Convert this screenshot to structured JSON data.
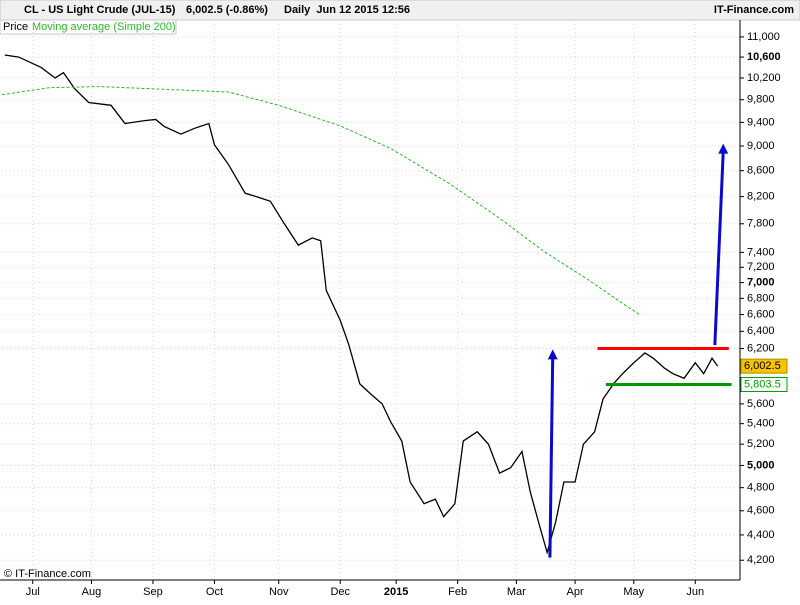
{
  "header": {
    "symbol": "CL - US Light Crude (JUL-15)",
    "quote": "6,002.5 (-0.86%)",
    "period": "Daily  Jun 12 2015 12:56",
    "brand": "IT-Finance.com"
  },
  "footer": "© IT-Finance.com",
  "chart_data": {
    "type": "line",
    "log_scale": true,
    "grid": true,
    "xlim": [
      0,
      264
    ],
    "ylim": [
      4050,
      11080
    ],
    "xticks": [
      {
        "value": 11,
        "label": "Jul"
      },
      {
        "value": 32,
        "label": "Aug"
      },
      {
        "value": 54,
        "label": "Sep"
      },
      {
        "value": 76,
        "label": "Oct"
      },
      {
        "value": 99,
        "label": "Nov"
      },
      {
        "value": 121,
        "label": "Dec"
      },
      {
        "value": 141,
        "label": "2015"
      },
      {
        "value": 163,
        "label": "Feb"
      },
      {
        "value": 184,
        "label": "Mar"
      },
      {
        "value": 205,
        "label": "Apr"
      },
      {
        "value": 226,
        "label": "May"
      },
      {
        "value": 248,
        "label": "Jun"
      }
    ],
    "yticks": [
      {
        "value": 4200,
        "label": "4,200"
      },
      {
        "value": 4400,
        "label": "4,400"
      },
      {
        "value": 4600,
        "label": "4,600"
      },
      {
        "value": 4800,
        "label": "4,800"
      },
      {
        "value": 5000,
        "label": "5,000"
      },
      {
        "value": 5200,
        "label": "5,200"
      },
      {
        "value": 5400,
        "label": "5,400"
      },
      {
        "value": 5600,
        "label": "5,600"
      },
      {
        "value": 6200,
        "label": "6,200"
      },
      {
        "value": 6400,
        "label": "6,400"
      },
      {
        "value": 6600,
        "label": "6,600"
      },
      {
        "value": 6800,
        "label": "6,800"
      },
      {
        "value": 7000,
        "label": "7,000"
      },
      {
        "value": 7200,
        "label": "7,200"
      },
      {
        "value": 7400,
        "label": "7,400"
      },
      {
        "value": 7800,
        "label": "7,800"
      },
      {
        "value": 8200,
        "label": "8,200"
      },
      {
        "value": 8600,
        "label": "8,600"
      },
      {
        "value": 9000,
        "label": "9,000"
      },
      {
        "value": 9400,
        "label": "9,400"
      },
      {
        "value": 9800,
        "label": "9,800"
      },
      {
        "value": 10200,
        "label": "10,200"
      },
      {
        "value": 10600,
        "label": "10,600"
      },
      {
        "value": 11000,
        "label": "11,000"
      }
    ],
    "major_yticks": [
      5000,
      7000,
      10600
    ],
    "series": [
      {
        "name": "Price",
        "color": "#000000",
        "x": [
          1,
          6,
          14,
          19,
          22,
          26,
          31,
          39,
          44,
          51,
          55,
          58,
          64,
          69,
          74,
          76,
          81,
          87,
          91,
          96,
          101,
          106,
          111,
          114,
          116,
          121,
          124,
          128,
          132,
          136,
          139,
          143,
          146,
          151,
          155,
          158,
          162,
          165,
          170,
          174,
          178,
          182,
          186,
          189,
          192,
          195,
          198,
          201,
          205,
          208,
          212,
          215,
          219,
          222,
          226,
          230,
          233,
          237,
          240,
          244,
          248,
          251,
          254,
          256
        ],
        "values": [
          10640,
          10600,
          10400,
          10200,
          10300,
          10000,
          9750,
          9700,
          9380,
          9430,
          9450,
          9330,
          9200,
          9300,
          9380,
          9020,
          8700,
          8250,
          8200,
          8130,
          7800,
          7500,
          7600,
          7560,
          6900,
          6530,
          6250,
          5810,
          5700,
          5600,
          5420,
          5230,
          4850,
          4660,
          4700,
          4550,
          4660,
          5230,
          5320,
          5200,
          4930,
          4980,
          5130,
          4760,
          4500,
          4260,
          4500,
          4850,
          4850,
          5200,
          5320,
          5650,
          5820,
          5920,
          6040,
          6150,
          6090,
          5980,
          5920,
          5870,
          6040,
          5920,
          6090,
          6002.5
        ]
      },
      {
        "name": "Moving average (Simple 200)",
        "color": "#2db52d",
        "dash": true,
        "x": [
          0,
          17,
          35,
          81,
          99,
          121,
          139,
          160,
          178,
          194,
          210,
          221,
          228
        ],
        "values": [
          9890,
          10020,
          10040,
          9940,
          9700,
          9340,
          8960,
          8400,
          7880,
          7410,
          7030,
          6760,
          6600
        ]
      }
    ],
    "levels": [
      {
        "value": 6200,
        "x": [
          213,
          260
        ],
        "color": "#ff0000"
      },
      {
        "value": 5803.5,
        "label": "5,803.5",
        "x": [
          216,
          261
        ],
        "color": "#009900"
      }
    ],
    "last_price": {
      "value": 6002.5,
      "label": "6,002.5"
    },
    "arrows": [
      {
        "x": [
          196,
          197
        ],
        "values": [
          4220,
          6190
        ],
        "color": "#0a0acc"
      },
      {
        "x": [
          255,
          258
        ],
        "values": [
          6240,
          9040
        ],
        "color": "#0a0acc"
      }
    ]
  }
}
